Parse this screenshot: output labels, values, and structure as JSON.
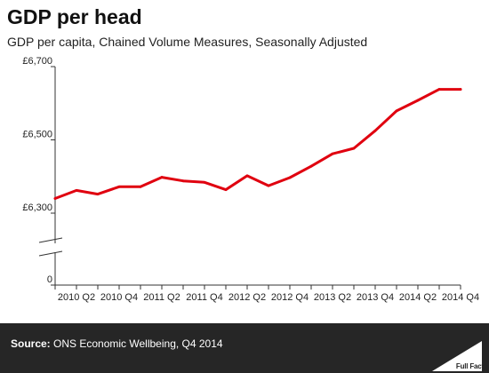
{
  "title": "GDP per head",
  "subtitle": "GDP per capita, Chained Volume Measures, Seasonally Adjusted",
  "source_label": "Source:",
  "source_text": "ONS Economic Wellbeing, Q4 2014",
  "logo_text": "Full Fact",
  "colors": {
    "line": "#e0000f",
    "footer_bg": "#262626",
    "axis": "#333333"
  },
  "chart_data": {
    "type": "line",
    "title": "GDP per head",
    "subtitle": "GDP per capita, Chained Volume Measures, Seasonally Adjusted",
    "xlabel": "",
    "ylabel": "",
    "y_axis_break": true,
    "yticks": [
      "£6,700",
      "£6,500",
      "£6,300",
      "0"
    ],
    "ytick_values": [
      6700,
      6500,
      6300,
      0
    ],
    "ylim": [
      6300,
      6700
    ],
    "grid": false,
    "legend": "none",
    "xtick_labels": [
      "2010 Q2",
      "2010 Q4",
      "2011 Q2",
      "2011 Q4",
      "2012 Q2",
      "2012 Q4",
      "2013 Q2",
      "2013 Q4",
      "2014 Q2",
      "2014 Q4"
    ],
    "categories": [
      "2010 Q1",
      "2010 Q2",
      "2010 Q3",
      "2010 Q4",
      "2011 Q1",
      "2011 Q2",
      "2011 Q3",
      "2011 Q4",
      "2012 Q1",
      "2012 Q2",
      "2012 Q3",
      "2012 Q4",
      "2013 Q1",
      "2013 Q2",
      "2013 Q3",
      "2013 Q4",
      "2014 Q1",
      "2014 Q2",
      "2014 Q3",
      "2014 Q4"
    ],
    "values": [
      6340,
      6362,
      6352,
      6372,
      6372,
      6398,
      6388,
      6384,
      6364,
      6402,
      6375,
      6397,
      6428,
      6462,
      6477,
      6525,
      6579,
      6608,
      6638,
      6638
    ]
  }
}
